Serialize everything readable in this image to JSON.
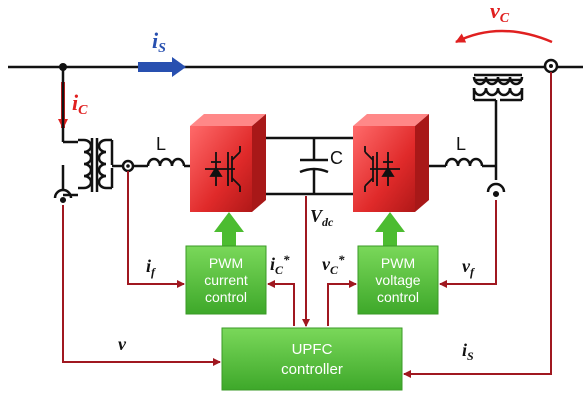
{
  "diagram": {
    "labels": {
      "is_top": {
        "main": "i",
        "sub": "S"
      },
      "vc_top": {
        "main": "v",
        "sub": "C"
      },
      "ic_left": {
        "main": "i",
        "sub": "C"
      },
      "inductor_left": "L",
      "inductor_right": "L",
      "capacitor": "C",
      "vdc": {
        "main": "V",
        "sub": "dc"
      },
      "if_left": {
        "main": "i",
        "sub": "f"
      },
      "ic_ref": {
        "main": "i",
        "sub": "C",
        "sup": "*"
      },
      "vc_ref": {
        "main": "v",
        "sub": "C",
        "sup": "*"
      },
      "vf_right": {
        "main": "v",
        "sub": "f"
      },
      "v_left": "v",
      "is_right": {
        "main": "i",
        "sub": "S"
      }
    },
    "blocks": {
      "pwm_current": [
        "PWM",
        "current",
        "control"
      ],
      "pwm_voltage": [
        "PWM",
        "voltage",
        "control"
      ],
      "upfc": [
        "UPFC",
        "controller"
      ]
    },
    "colors": {
      "line": "#111111",
      "signal": "#a01820",
      "current_arrow": "#e02020",
      "is_arrow": "#2850b0",
      "converter": "#e83030",
      "block": "#5cc43a"
    }
  }
}
